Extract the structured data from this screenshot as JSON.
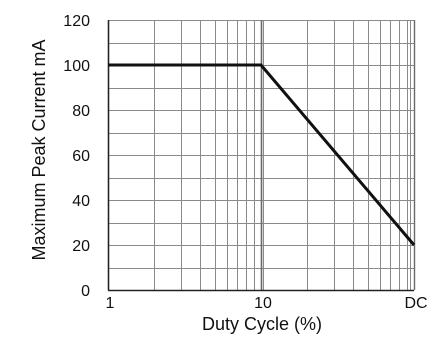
{
  "chart_data": {
    "type": "line",
    "xscale": "log",
    "xlabel": "Duty Cycle (%)",
    "ylabel": "Maximum Peak Current mA",
    "xlim": [
      1,
      100
    ],
    "ylim": [
      0,
      120
    ],
    "grid": true,
    "x_ticks": [
      {
        "value": 1,
        "label": "1"
      },
      {
        "value": 10,
        "label": "10"
      },
      {
        "value": 100,
        "label": "DC"
      }
    ],
    "y_ticks": [
      {
        "value": 0,
        "label": "0"
      },
      {
        "value": 20,
        "label": "20"
      },
      {
        "value": 40,
        "label": "40"
      },
      {
        "value": 60,
        "label": "60"
      },
      {
        "value": 80,
        "label": "80"
      },
      {
        "value": 100,
        "label": "100"
      },
      {
        "value": 120,
        "label": "120"
      }
    ],
    "series": [
      {
        "points": [
          {
            "x": 1,
            "y": 100
          },
          {
            "x": 10,
            "y": 100
          },
          {
            "x": 100,
            "y": 20
          }
        ]
      }
    ],
    "colors": {
      "line": "#111111",
      "grid": "#8a8a8a",
      "grid_major": "#6a6a6a"
    }
  }
}
